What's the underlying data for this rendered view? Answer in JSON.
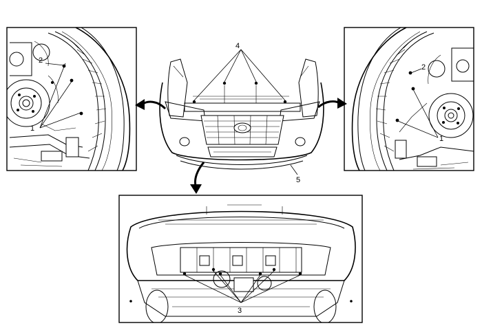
{
  "callouts": {
    "c1_left": "1",
    "c2_left": "2",
    "c1_right": "1",
    "c2_right": "2",
    "c3": "3",
    "c4": "4",
    "c5": "5"
  },
  "icons": {
    "arrow_left": "curved-arrow-icon",
    "arrow_right": "curved-arrow-icon",
    "arrow_down": "curved-arrow-icon"
  }
}
